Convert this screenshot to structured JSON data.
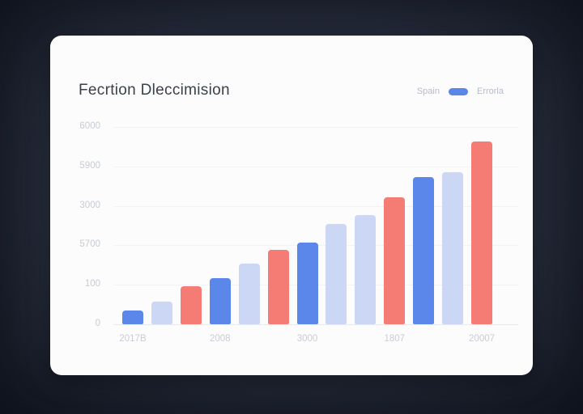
{
  "page": {
    "background_center_color": "#2c3343",
    "background_edge_color": "#1a1f2b"
  },
  "card": {
    "background_color": "#fcfcfd"
  },
  "header": {
    "title": "Fecrtion Dleccimision"
  },
  "legend": {
    "items": [
      {
        "label": "Spain"
      },
      {
        "label": "Errorla",
        "swatch_color": "#5b87ea"
      }
    ]
  },
  "chart_data": {
    "type": "bar",
    "title": "Fecrtion Dleccimision",
    "legend": [
      "Spain",
      "Errorla"
    ],
    "legend_position": "top-right",
    "grid": true,
    "ylim": [
      0,
      6000
    ],
    "y_tick_labels": [
      "6000",
      "5900",
      "3000",
      "5700",
      "100",
      "0"
    ],
    "x_tick_labels": [
      "2017B",
      "2008",
      "3000",
      "1807",
      "20007"
    ],
    "x_label_every_n_bars": 3,
    "palette": {
      "blue": "#5b87ea",
      "lavender": "#ccd7f6",
      "red": "#f57c74"
    },
    "bars": [
      {
        "value": 420,
        "color": "blue"
      },
      {
        "value": 690,
        "color": "lavender"
      },
      {
        "value": 1150,
        "color": "red"
      },
      {
        "value": 1400,
        "color": "blue"
      },
      {
        "value": 1840,
        "color": "lavender"
      },
      {
        "value": 2260,
        "color": "red"
      },
      {
        "value": 2480,
        "color": "blue"
      },
      {
        "value": 3050,
        "color": "lavender"
      },
      {
        "value": 3320,
        "color": "lavender"
      },
      {
        "value": 3860,
        "color": "red"
      },
      {
        "value": 4480,
        "color": "blue"
      },
      {
        "value": 4620,
        "color": "lavender"
      },
      {
        "value": 5560,
        "color": "red"
      }
    ]
  }
}
